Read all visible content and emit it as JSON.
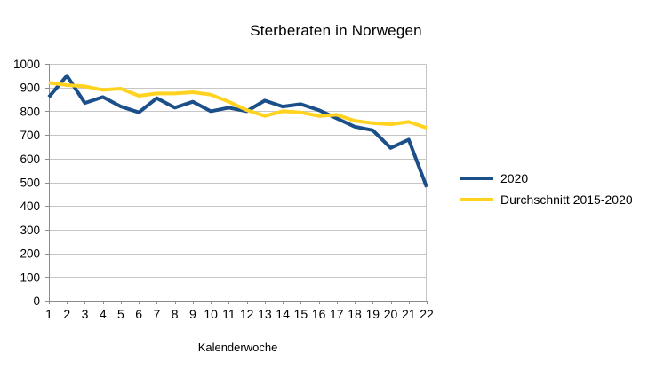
{
  "chart_data": {
    "type": "line",
    "title": "Sterberaten in Norwegen",
    "xlabel": "Kalenderwoche",
    "ylabel": "",
    "ylim": [
      0,
      1000
    ],
    "yticks": [
      0,
      100,
      200,
      300,
      400,
      500,
      600,
      700,
      800,
      900,
      1000
    ],
    "grid": "horizontal",
    "legend_position": "right",
    "categories": [
      1,
      2,
      3,
      4,
      5,
      6,
      7,
      8,
      9,
      10,
      11,
      12,
      13,
      14,
      15,
      16,
      17,
      18,
      19,
      20,
      21,
      22
    ],
    "series": [
      {
        "name": "2020",
        "color": "#1B4F89",
        "values": [
          860,
          950,
          835,
          860,
          820,
          795,
          855,
          815,
          840,
          800,
          815,
          800,
          845,
          820,
          830,
          805,
          770,
          735,
          720,
          645,
          680,
          480
        ]
      },
      {
        "name": "Durchschnitt 2015-2020",
        "color": "#FFD320",
        "values": [
          920,
          910,
          905,
          890,
          895,
          865,
          875,
          875,
          880,
          870,
          840,
          805,
          780,
          800,
          795,
          780,
          785,
          760,
          750,
          745,
          755,
          730
        ]
      }
    ],
    "colors": {
      "grid": "#c6c6c6",
      "axis": "#8c8c8c",
      "text": "#000000",
      "background": "#ffffff"
    }
  }
}
